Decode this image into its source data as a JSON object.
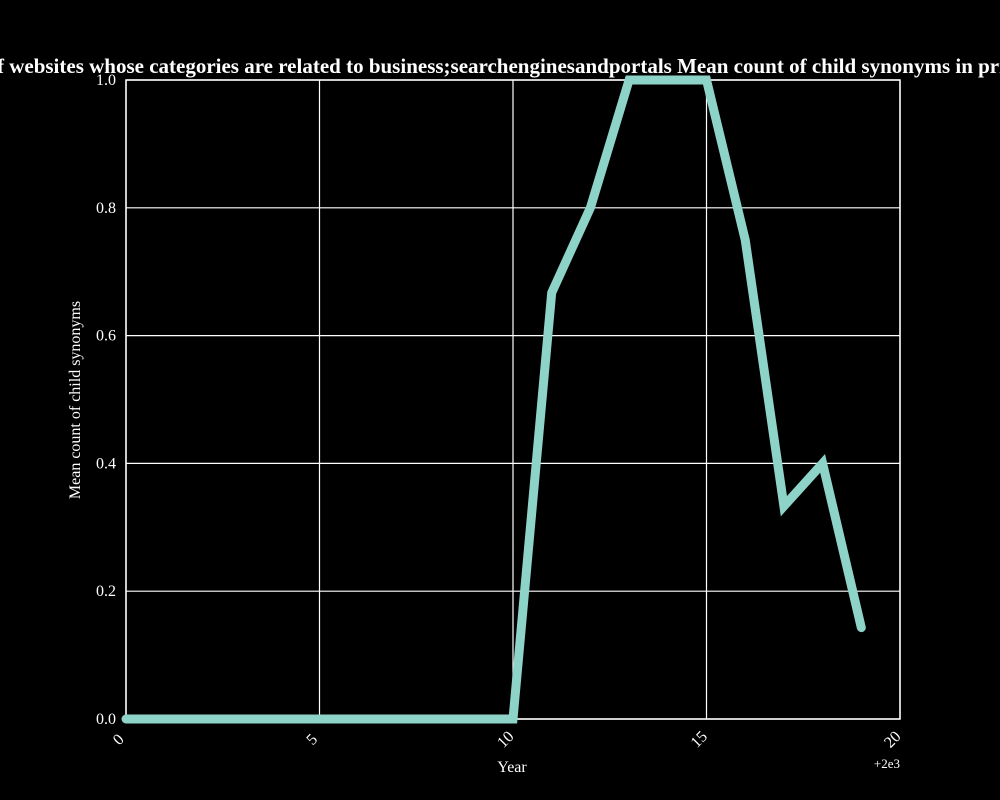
{
  "chart_data": {
    "type": "line",
    "title": "Percentage of websites whose categories are related to business;searchenginesandportals Mean count of child synonyms in privacy policies",
    "xlabel": "Year",
    "ylabel": "Mean count of child synonyms",
    "x_offset_label": "+2e3",
    "xlim": [
      0,
      20
    ],
    "ylim": [
      0,
      1
    ],
    "x_ticks": [
      "0",
      "5",
      "10",
      "15",
      "20"
    ],
    "y_ticks": [
      "0.0",
      "0.2",
      "0.4",
      "0.6",
      "0.8",
      "1.0"
    ],
    "grid": true,
    "legend": "none",
    "colors": {
      "background": "#000000",
      "line": "#8dd3c7",
      "grid": "#ffffff",
      "text": "#ffffff"
    },
    "series": [
      {
        "x": [
          0,
          1,
          2,
          3,
          4,
          5,
          6,
          7,
          8,
          9,
          10,
          11,
          12,
          13,
          14,
          15,
          16,
          17,
          18,
          19
        ],
        "y": [
          0,
          0,
          0,
          0,
          0,
          0,
          0,
          0,
          0,
          0,
          0,
          0.667,
          0.8,
          1.0,
          1.0,
          1.0,
          0.75,
          0.333,
          0.4,
          0.143
        ]
      }
    ]
  }
}
